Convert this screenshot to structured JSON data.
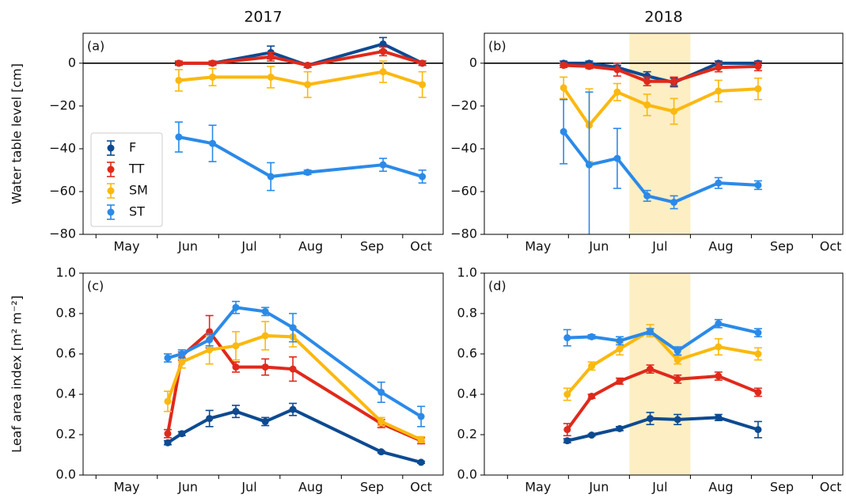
{
  "chart_data": [
    {
      "type": "line",
      "title": "2017",
      "panel_label": "(a)",
      "ylabel": "Water table level [cm]",
      "x": [
        6.35,
        6.9,
        7.85,
        8.45,
        9.68,
        10.32
      ],
      "xlim": [
        4.79,
        10.66
      ],
      "xticks": [
        {
          "value": 5.5,
          "label": "May"
        },
        {
          "value": 6.5,
          "label": "Jun"
        },
        {
          "value": 7.5,
          "label": "Jul"
        },
        {
          "value": 8.5,
          "label": "Aug"
        },
        {
          "value": 9.5,
          "label": "Sep"
        },
        {
          "value": 10.3,
          "label": "Oct"
        }
      ],
      "xminorticks": [
        5,
        6,
        7,
        8,
        9,
        10
      ],
      "ylim": [
        -80,
        14
      ],
      "yticks": [
        {
          "value": -80,
          "label": "−80"
        },
        {
          "value": -60,
          "label": "−60"
        },
        {
          "value": -40,
          "label": "−40"
        },
        {
          "value": -20,
          "label": "−20"
        },
        0
      ],
      "hline": 0,
      "legend": "center left",
      "series": [
        {
          "name": "F",
          "color": "#0d4a91",
          "values": [
            0,
            0,
            5,
            -1,
            9,
            0
          ],
          "errors": [
            0.5,
            0.5,
            3,
            1,
            3,
            1
          ]
        },
        {
          "name": "TT",
          "color": "#e0291b",
          "values": [
            0,
            0,
            3,
            -1,
            5.5,
            0
          ],
          "errors": [
            1,
            1,
            2,
            1,
            2,
            1
          ]
        },
        {
          "name": "SM",
          "color": "#fbb80f",
          "values": [
            -8,
            -6.5,
            -6.5,
            -10,
            -4,
            -10
          ],
          "errors": [
            5,
            4,
            5,
            6,
            5,
            6
          ]
        },
        {
          "name": "ST",
          "color": "#2b8ae8",
          "values": [
            -34.5,
            -37.5,
            -53,
            -51,
            -47.5,
            -53
          ],
          "errors": [
            7,
            8.5,
            6.5,
            1,
            3,
            3
          ]
        }
      ]
    },
    {
      "type": "line",
      "title": "2018",
      "panel_label": "(b)",
      "x": [
        5.92,
        6.34,
        6.8,
        7.29,
        7.73,
        8.46,
        9.11
      ],
      "xlim": [
        4.62,
        10.5
      ],
      "xticks": [
        {
          "value": 5.5,
          "label": "May"
        },
        {
          "value": 6.5,
          "label": "Jun"
        },
        {
          "value": 7.5,
          "label": "Jul"
        },
        {
          "value": 8.5,
          "label": "Aug"
        },
        {
          "value": 9.5,
          "label": "Sep"
        },
        {
          "value": 10.3,
          "label": "Oct"
        }
      ],
      "xminorticks": [
        5,
        6,
        7,
        8,
        9,
        10
      ],
      "ylim": [
        -80,
        14
      ],
      "yticks": [
        {
          "value": -80,
          "label": "−80"
        },
        {
          "value": -60,
          "label": "−60"
        },
        {
          "value": -40,
          "label": "−40"
        },
        {
          "value": -20,
          "label": "−20"
        },
        0
      ],
      "hline": 0,
      "shade": [
        7,
        8
      ],
      "shade_color": "#fdeec4",
      "series": [
        {
          "color": "#0d4a91",
          "values": [
            0,
            0,
            -2,
            -6,
            -9,
            0,
            0
          ],
          "errors": [
            1,
            1,
            1,
            2,
            2,
            1,
            1
          ]
        },
        {
          "color": "#e0291b",
          "values": [
            -1,
            -1.5,
            -3,
            -8.5,
            -8.5,
            -2,
            -1.5
          ],
          "errors": [
            1,
            1,
            3,
            2,
            2,
            2,
            2
          ]
        },
        {
          "color": "#fbb80f",
          "values": [
            -11.5,
            -29,
            -13.5,
            -19.5,
            -22.5,
            -13,
            -12
          ],
          "errors": [
            5,
            17,
            4,
            5,
            6,
            5,
            5
          ]
        },
        {
          "color": "#2b8ae8",
          "values": [
            -32,
            -47.5,
            -44.5,
            -62,
            -65,
            -56,
            -57
          ],
          "errors": [
            15,
            34,
            14,
            2.5,
            3,
            2.5,
            2
          ]
        }
      ]
    },
    {
      "type": "line",
      "panel_label": "(c)",
      "ylabel": "Leaf area index [m² m⁻²]",
      "x": [
        6.17,
        6.4,
        6.85,
        7.28,
        7.76,
        8.21,
        9.65,
        10.3
      ],
      "xlim": [
        4.79,
        10.66
      ],
      "xticks": [
        {
          "value": 5.5,
          "label": "May"
        },
        {
          "value": 6.5,
          "label": "Jun"
        },
        {
          "value": 7.5,
          "label": "Jul"
        },
        {
          "value": 8.5,
          "label": "Aug"
        },
        {
          "value": 9.5,
          "label": "Sep"
        },
        {
          "value": 10.3,
          "label": "Oct"
        }
      ],
      "xminorticks": [
        5,
        6,
        7,
        8,
        9,
        10
      ],
      "ylim": [
        0,
        1
      ],
      "yticks": [
        {
          "value": 0,
          "label": "0.0"
        },
        0.2,
        0.4,
        0.6,
        0.8,
        {
          "value": 1,
          "label": "1.0"
        }
      ],
      "series": [
        {
          "color": "#0d4a91",
          "values": [
            0.16,
            0.205,
            0.28,
            0.315,
            0.265,
            0.325,
            0.115,
            0.063
          ],
          "errors": [
            0.01,
            0.01,
            0.04,
            0.03,
            0.02,
            0.03,
            0.005,
            0.005
          ]
        },
        {
          "color": "#e0291b",
          "values": [
            0.205,
            0.59,
            0.71,
            0.535,
            0.535,
            0.525,
            0.255,
            0.17
          ],
          "errors": [
            0.02,
            0.02,
            0.08,
            0.025,
            0.04,
            0.06,
            0.02,
            0.015
          ]
        },
        {
          "color": "#fbb80f",
          "values": [
            0.365,
            0.56,
            0.62,
            0.64,
            0.69,
            0.685,
            0.265,
            0.175
          ],
          "errors": [
            0.05,
            0.03,
            0.07,
            0.07,
            0.07,
            0.05,
            0.02,
            0.015
          ]
        },
        {
          "color": "#2b8ae8",
          "values": [
            0.58,
            0.6,
            0.67,
            0.83,
            0.81,
            0.73,
            0.41,
            0.29
          ],
          "errors": [
            0.02,
            0.02,
            0.03,
            0.03,
            0.02,
            0.07,
            0.05,
            0.05
          ]
        }
      ]
    },
    {
      "type": "line",
      "panel_label": "(d)",
      "x": [
        5.98,
        6.38,
        6.84,
        7.34,
        7.79,
        8.46,
        9.11
      ],
      "xlim": [
        4.62,
        10.5
      ],
      "xticks": [
        {
          "value": 5.5,
          "label": "May"
        },
        {
          "value": 6.5,
          "label": "Jun"
        },
        {
          "value": 7.5,
          "label": "Jul"
        },
        {
          "value": 8.5,
          "label": "Aug"
        },
        {
          "value": 9.5,
          "label": "Sep"
        },
        {
          "value": 10.3,
          "label": "Oct"
        }
      ],
      "xminorticks": [
        5,
        6,
        7,
        8,
        9,
        10
      ],
      "ylim": [
        0,
        1
      ],
      "yticks": [
        {
          "value": 0,
          "label": "0.0"
        },
        0.2,
        0.4,
        0.6,
        0.8,
        {
          "value": 1,
          "label": "1.0"
        }
      ],
      "shade": [
        7,
        8
      ],
      "shade_color": "#fdeec4",
      "series": [
        {
          "color": "#0d4a91",
          "values": [
            0.17,
            0.198,
            0.23,
            0.28,
            0.275,
            0.285,
            0.225
          ],
          "errors": [
            0.01,
            0.005,
            0.01,
            0.03,
            0.025,
            0.015,
            0.04
          ]
        },
        {
          "color": "#e0291b",
          "values": [
            0.225,
            0.39,
            0.465,
            0.525,
            0.475,
            0.49,
            0.41
          ],
          "errors": [
            0.03,
            0.01,
            0.015,
            0.02,
            0.02,
            0.02,
            0.02
          ]
        },
        {
          "color": "#fbb80f",
          "values": [
            0.4,
            0.54,
            0.625,
            0.715,
            0.57,
            0.635,
            0.6
          ],
          "errors": [
            0.03,
            0.02,
            0.03,
            0.03,
            0.02,
            0.04,
            0.03
          ]
        },
        {
          "color": "#2b8ae8",
          "values": [
            0.68,
            0.685,
            0.665,
            0.71,
            0.615,
            0.75,
            0.705
          ],
          "errors": [
            0.04,
            0.01,
            0.02,
            0.015,
            0.02,
            0.02,
            0.02
          ]
        }
      ]
    }
  ]
}
